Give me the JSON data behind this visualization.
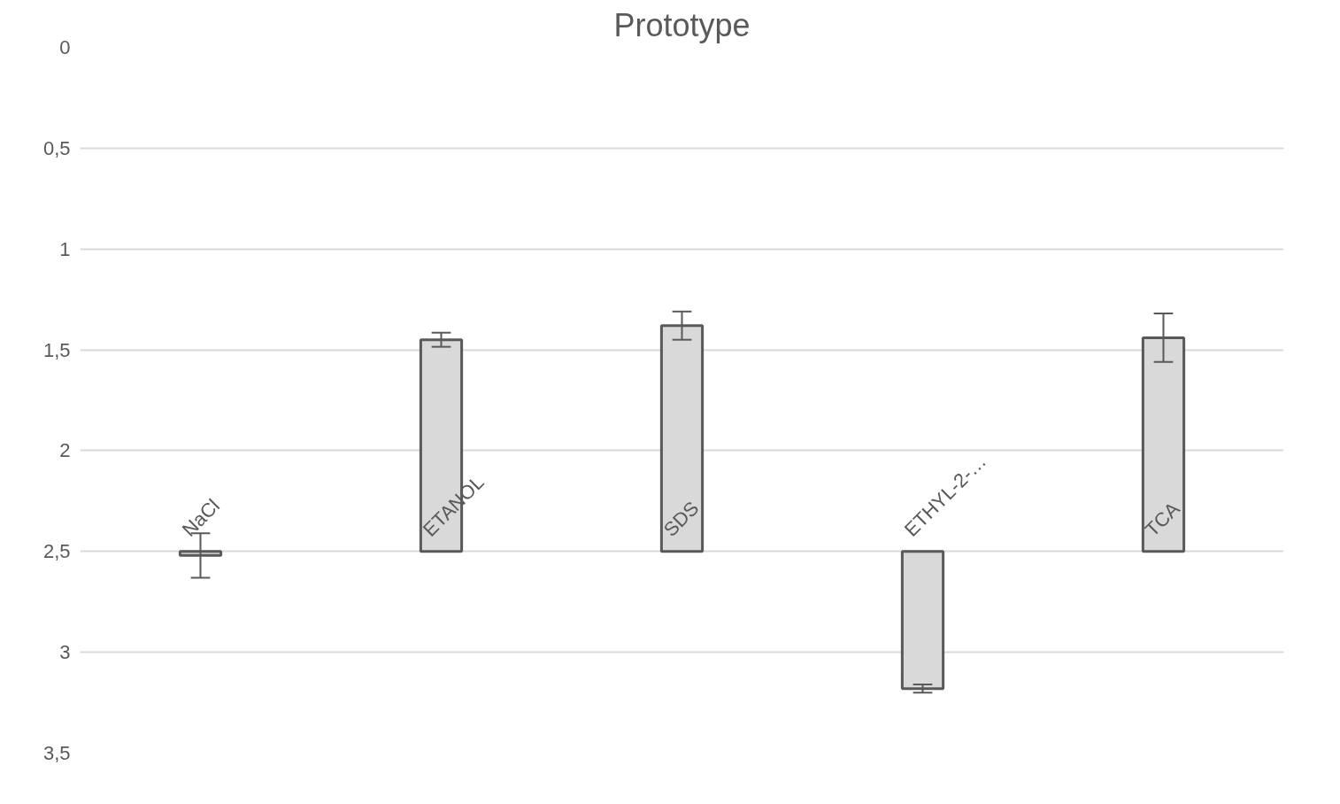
{
  "chart_data": {
    "type": "bar",
    "title": "Prototype",
    "categories": [
      "NaCl",
      "ETANOL",
      "SDS",
      "ETHYL-2-…",
      "TCA"
    ],
    "base": [
      2.5,
      2.5,
      2.5,
      2.5,
      2.5
    ],
    "values": [
      0.02,
      -1.05,
      -1.12,
      0.68,
      -1.06
    ],
    "errors": [
      0.11,
      0.035,
      0.07,
      0.02,
      0.12
    ],
    "color": "#d9d9d9",
    "ylim": [
      3.5,
      0
    ],
    "yticks": [
      0,
      {
        "value": 0.5,
        "label": "0,5"
      },
      1,
      {
        "value": 1.5,
        "label": "1,5"
      },
      2,
      {
        "value": 2.5,
        "label": "2,5"
      },
      3,
      {
        "value": 3.5,
        "label": "3,5"
      }
    ],
    "grid": "y"
  }
}
